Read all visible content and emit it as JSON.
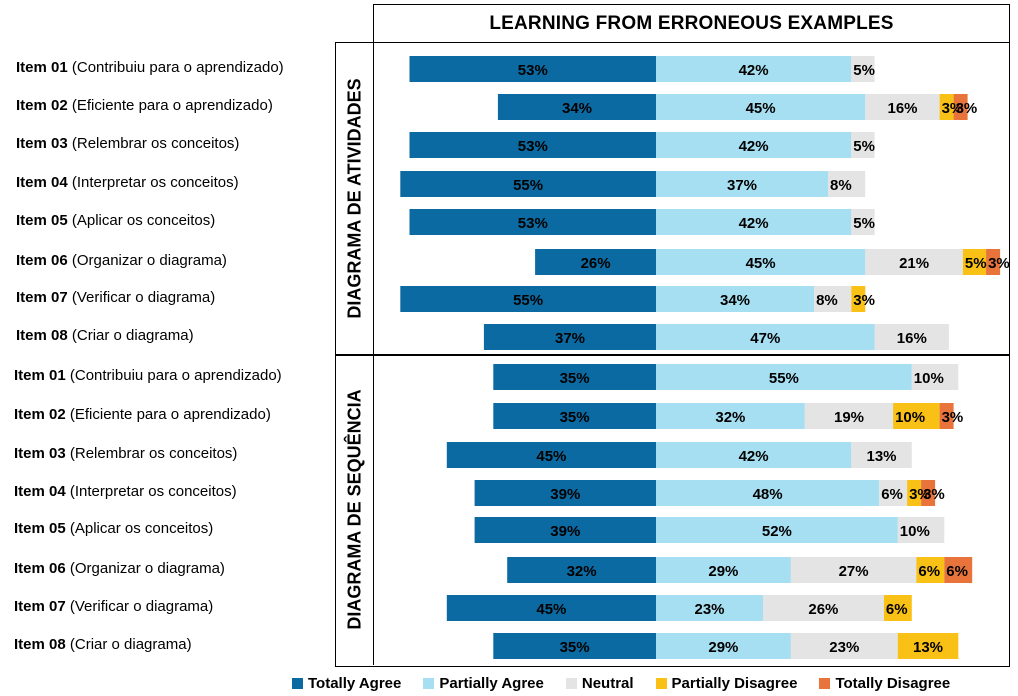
{
  "chart_data": {
    "type": "bar",
    "title": "LEARNING FROM ERRONEOUS EXAMPLES",
    "series_names": [
      "Totally Agree",
      "Partially Agree",
      "Neutral",
      "Partially Disagree",
      "Totally Disagree"
    ],
    "colors": [
      "#0b6aa2",
      "#a6dff2",
      "#e4e4e4",
      "#f9c115",
      "#e8743b"
    ],
    "groups": [
      {
        "name": "DIAGRAMA DE ATIVIDADES",
        "items": [
          {
            "id": "Item 01",
            "desc": "(Contribuiu para o aprendizado)",
            "values": [
              53,
              42,
              5,
              0,
              0
            ]
          },
          {
            "id": "Item 02",
            "desc": "(Eficiente para o aprendizado)",
            "values": [
              34,
              45,
              16,
              3,
              3
            ]
          },
          {
            "id": "Item 03",
            "desc": "(Relembrar os conceitos)",
            "values": [
              53,
              42,
              5,
              0,
              0
            ]
          },
          {
            "id": "Item 04",
            "desc": "(Interpretar os conceitos)",
            "values": [
              55,
              37,
              8,
              0,
              0
            ]
          },
          {
            "id": "Item 05",
            "desc": "(Aplicar os conceitos)",
            "values": [
              53,
              42,
              5,
              0,
              0
            ]
          },
          {
            "id": "Item 06",
            "desc": "(Organizar o diagrama)",
            "values": [
              26,
              45,
              21,
              5,
              3
            ]
          },
          {
            "id": "Item 07",
            "desc": "(Verificar o diagrama)",
            "values": [
              55,
              34,
              8,
              3,
              0
            ]
          },
          {
            "id": "Item 08",
            "desc": "(Criar o diagrama)",
            "values": [
              37,
              47,
              16,
              0,
              0
            ]
          }
        ]
      },
      {
        "name": "DIAGRAMA DE SEQUÊNCIA",
        "items": [
          {
            "id": "Item 01",
            "desc": "(Contribuiu para o aprendizado)",
            "values": [
              35,
              55,
              10,
              0,
              0
            ]
          },
          {
            "id": "Item 02",
            "desc": "(Eficiente para o aprendizado)",
            "values": [
              35,
              32,
              19,
              10,
              3
            ]
          },
          {
            "id": "Item 03",
            "desc": "(Relembrar os conceitos)",
            "values": [
              45,
              42,
              13,
              0,
              0
            ]
          },
          {
            "id": "Item 04",
            "desc": "(Interpretar os conceitos)",
            "values": [
              39,
              48,
              6,
              3,
              3
            ]
          },
          {
            "id": "Item 05",
            "desc": "(Aplicar os conceitos)",
            "values": [
              39,
              52,
              10,
              0,
              0
            ]
          },
          {
            "id": "Item 06",
            "desc": "(Organizar o diagrama)",
            "values": [
              32,
              29,
              27,
              6,
              6
            ]
          },
          {
            "id": "Item 07",
            "desc": "(Verificar o diagrama)",
            "values": [
              45,
              23,
              26,
              6,
              0
            ]
          },
          {
            "id": "Item 08",
            "desc": "(Criar o diagrama)",
            "values": [
              35,
              29,
              23,
              13,
              0
            ]
          }
        ]
      }
    ]
  }
}
